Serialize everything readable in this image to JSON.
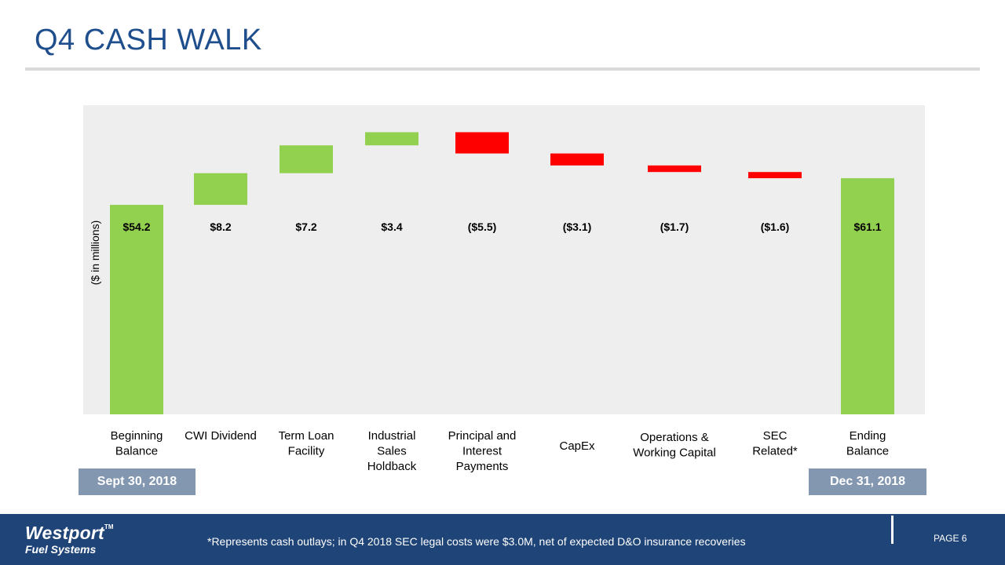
{
  "slide": {
    "title": "Q4 CASH WALK",
    "footnote": "*Represents cash outlays; in Q4 2018 SEC legal costs were $3.0M, net of expected D&O insurance recoveries",
    "page_label": "PAGE 6",
    "logo": {
      "brand": "Westport",
      "trademark": "TM",
      "subtitle": "Fuel Systems"
    }
  },
  "dates": {
    "start": "Sept 30, 2018",
    "end": "Dec 31, 2018"
  },
  "colors": {
    "increase": "#92d050",
    "decrease": "#ff0000",
    "total": "#92d050",
    "plot_bg": "#eeeeee",
    "date_box": "#8497b0",
    "footer": "#1f4477",
    "title": "#1f4e8c"
  },
  "chart_data": {
    "type": "waterfall",
    "ylabel": "($ in millions)",
    "ylim": [
      0,
      80
    ],
    "grid": false,
    "steps": [
      {
        "label": [
          "Beginning",
          "Balance"
        ],
        "value": 54.2,
        "kind": "total",
        "display": "$54.2"
      },
      {
        "label": [
          "CWI Dividend"
        ],
        "value": 8.2,
        "kind": "increase",
        "display": "$8.2"
      },
      {
        "label": [
          "Term Loan",
          "Facility"
        ],
        "value": 7.2,
        "kind": "increase",
        "display": "$7.2"
      },
      {
        "label": [
          "Industrial",
          "Sales",
          "Holdback"
        ],
        "value": 3.4,
        "kind": "increase",
        "display": "$3.4"
      },
      {
        "label": [
          "Principal and",
          "Interest",
          "Payments"
        ],
        "value": -5.5,
        "kind": "decrease",
        "display": "($5.5)"
      },
      {
        "label": [
          "CapEx"
        ],
        "value": -3.1,
        "kind": "decrease",
        "display": "($3.1)"
      },
      {
        "label": [
          "Operations &",
          "Working Capital"
        ],
        "value": -1.7,
        "kind": "decrease",
        "display": "($1.7)"
      },
      {
        "label": [
          "SEC",
          "Related*"
        ],
        "value": -1.6,
        "kind": "decrease",
        "display": "($1.6)"
      },
      {
        "label": [
          "Ending",
          "Balance"
        ],
        "value": 61.1,
        "kind": "total",
        "display": "$61.1"
      }
    ]
  }
}
